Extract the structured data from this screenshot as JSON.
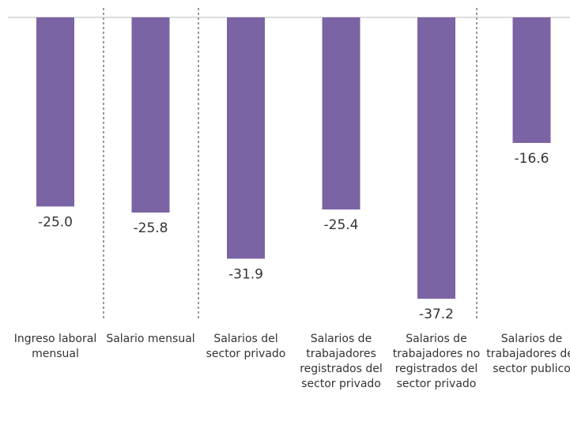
{
  "chart_data": {
    "type": "bar",
    "categories": [
      "Ingreso laboral mensual",
      "Salario mensual",
      "Salarios del sector privado",
      "Salarios de trabajadores registrados del sector privado",
      "Salarios de trabajadores no registrados del sector privado",
      "Salarios de trabajadores del sector publico"
    ],
    "values": [
      -25.0,
      -25.8,
      -31.9,
      -25.4,
      -37.2,
      -16.6
    ],
    "value_labels": [
      "-25.0",
      "-25.8",
      "-31.9",
      "-25.4",
      "-37.2",
      "-16.6"
    ],
    "color": "#7b64a4",
    "ylim": [
      -40,
      0
    ]
  }
}
